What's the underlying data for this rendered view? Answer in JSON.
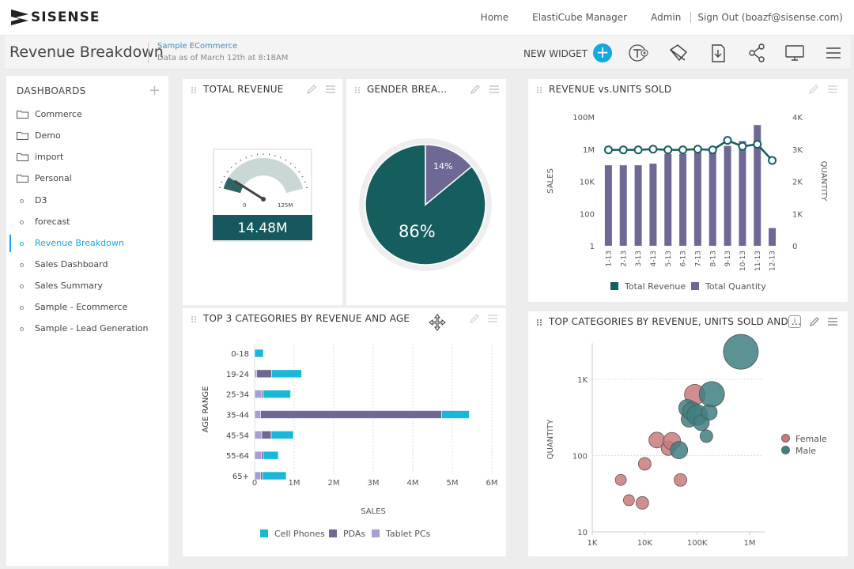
{
  "app": {
    "logo_text": "SISENSE"
  },
  "nav": {
    "home": "Home",
    "elasticube": "ElastiCube Manager",
    "admin": "Admin",
    "signout": "Sign Out (boazf@sisense.com)"
  },
  "header": {
    "title": "Revenue Breakdown",
    "model": "Sample ECommerce",
    "data_date": "Data as of March 12th at 8:18AM",
    "new_widget": "NEW WIDGET",
    "plus": "+",
    "accent_color": "#14a9e0"
  },
  "sidebar": {
    "heading": "DASHBOARDS",
    "add": "+",
    "items": [
      {
        "label": "Commerce",
        "icon": "folder-icon"
      },
      {
        "label": "Demo",
        "icon": "folder-icon"
      },
      {
        "label": "import",
        "icon": "folder-icon"
      },
      {
        "label": "Personal",
        "icon": "folder-icon"
      },
      {
        "label": "D3",
        "icon": "dashboard-dot-icon"
      },
      {
        "label": "forecast",
        "icon": "dashboard-dot-icon"
      },
      {
        "label": "Revenue Breakdown",
        "icon": "dashboard-dot-icon",
        "active": true
      },
      {
        "label": "Sales Dashboard",
        "icon": "dashboard-dot-icon"
      },
      {
        "label": "Sales Summary",
        "icon": "dashboard-dot-icon"
      },
      {
        "label": "Sample - Ecommerce",
        "icon": "dashboard-dot-icon"
      },
      {
        "label": "Sample - Lead Generation",
        "icon": "dashboard-dot-icon"
      }
    ]
  },
  "widgets": {
    "total_revenue": {
      "title": "TOTAL REVENUE",
      "gauge_min": "0",
      "gauge_max": "125M",
      "value": "14.48M",
      "level": 0.116
    },
    "gender": {
      "title": "GENDER BREA...",
      "big_label": "86%",
      "small_label": "14%"
    },
    "rev_units": {
      "title": "REVENUE vs.UNITS SOLD"
    },
    "age": {
      "title": "TOP 3 CATEGORIES BY REVENUE AND AGE"
    },
    "bubble": {
      "title": "TOP CATEGORIES BY REVENUE, UNITS SOLD AND ...",
      "info": "i"
    }
  },
  "chart_data": [
    {
      "type": "pie",
      "title": "GENDER BREA...",
      "categories": [
        "Male",
        "Female"
      ],
      "values": [
        86,
        14
      ],
      "labels": [
        "86%",
        "14%"
      ],
      "colors": [
        "#165d60",
        "#6e6994"
      ]
    },
    {
      "type": "bar",
      "title": "REVENUE vs.UNITS SOLD",
      "categories": [
        "1-13",
        "2-13",
        "3-13",
        "4-13",
        "5-13",
        "6-13",
        "7-13",
        "8-13",
        "9-13",
        "10-13",
        "11-13",
        "12-13"
      ],
      "ylabel": "SALES",
      "y2label": "QUANTITY",
      "y_ticks": [
        "1",
        "100",
        "10K",
        "1M",
        "100M"
      ],
      "y2_ticks": [
        "0",
        "1K",
        "2K",
        "3K",
        "4K"
      ],
      "y_scale": "log",
      "y2lim": [
        0,
        4000
      ],
      "series": [
        {
          "name": "Total Revenue",
          "type": "line",
          "axis": "left",
          "color": "#165d60",
          "values": [
            900000,
            900000,
            900000,
            1000000,
            900000,
            900000,
            1000000,
            900000,
            3500000,
            1500000,
            2000000,
            200000
          ]
        },
        {
          "name": "Total Quantity",
          "type": "bar",
          "axis": "right",
          "color": "#6e6994",
          "values": [
            2500,
            2500,
            2500,
            2550,
            2850,
            2850,
            2900,
            2900,
            3100,
            3250,
            3750,
            550
          ]
        }
      ],
      "legend": "bottom"
    },
    {
      "type": "bar",
      "orientation": "horizontal",
      "stacked": true,
      "title": "TOP 3 CATEGORIES BY REVENUE AND AGE",
      "categories": [
        "0-18",
        "19-24",
        "25-34",
        "35-44",
        "45-54",
        "55-64",
        "65+"
      ],
      "xlabel": "SALES",
      "ylabel": "AGE RANGE",
      "x_ticks": [
        "0",
        "1M",
        "2M",
        "3M",
        "4M",
        "5M",
        "6M"
      ],
      "xlim": [
        0,
        6000000
      ],
      "series": [
        {
          "name": "Tablet PCs",
          "color": "#a69fd6",
          "values": [
            0,
            50000,
            180000,
            150000,
            180000,
            170000,
            150000
          ]
        },
        {
          "name": "PDAs",
          "color": "#6e6994",
          "values": [
            0,
            380000,
            40000,
            4580000,
            240000,
            50000,
            50000
          ]
        },
        {
          "name": "Cell Phones",
          "color": "#19b8d8",
          "values": [
            220000,
            760000,
            690000,
            700000,
            560000,
            380000,
            600000
          ]
        }
      ],
      "legend_order": [
        "Cell Phones",
        "PDAs",
        "Tablet PCs"
      ],
      "legend": "bottom"
    },
    {
      "type": "scatter",
      "title": "TOP CATEGORIES BY REVENUE, UNITS SOLD AND ...",
      "ylabel": "QUANTITY",
      "x_scale": "log",
      "y_scale": "log",
      "x_ticks": [
        "1K",
        "10K",
        "100K",
        "1M"
      ],
      "y_ticks": [
        "10",
        "100",
        "1K"
      ],
      "xlim": [
        1000,
        2000000
      ],
      "ylim": [
        10,
        3000
      ],
      "legend": "right",
      "series": [
        {
          "name": "Female",
          "color": "#c97a7a",
          "points": [
            {
              "x": 3500,
              "y": 48,
              "size": 7
            },
            {
              "x": 5000,
              "y": 26,
              "size": 7
            },
            {
              "x": 9000,
              "y": 24,
              "size": 8
            },
            {
              "x": 10000,
              "y": 78,
              "size": 8
            },
            {
              "x": 17000,
              "y": 160,
              "size": 10
            },
            {
              "x": 28000,
              "y": 125,
              "size": 9
            },
            {
              "x": 33000,
              "y": 155,
              "size": 11
            },
            {
              "x": 48000,
              "y": 48,
              "size": 8
            },
            {
              "x": 90000,
              "y": 630,
              "size": 13
            }
          ]
        },
        {
          "name": "Male",
          "color": "#3f7f80",
          "points": [
            {
              "x": 45000,
              "y": 118,
              "size": 11
            },
            {
              "x": 65000,
              "y": 420,
              "size": 11
            },
            {
              "x": 70000,
              "y": 300,
              "size": 10
            },
            {
              "x": 80000,
              "y": 380,
              "size": 12
            },
            {
              "x": 100000,
              "y": 340,
              "size": 13
            },
            {
              "x": 120000,
              "y": 270,
              "size": 10
            },
            {
              "x": 150000,
              "y": 180,
              "size": 8
            },
            {
              "x": 170000,
              "y": 370,
              "size": 10
            },
            {
              "x": 190000,
              "y": 640,
              "size": 16
            },
            {
              "x": 680000,
              "y": 2300,
              "size": 22
            }
          ]
        }
      ]
    }
  ]
}
